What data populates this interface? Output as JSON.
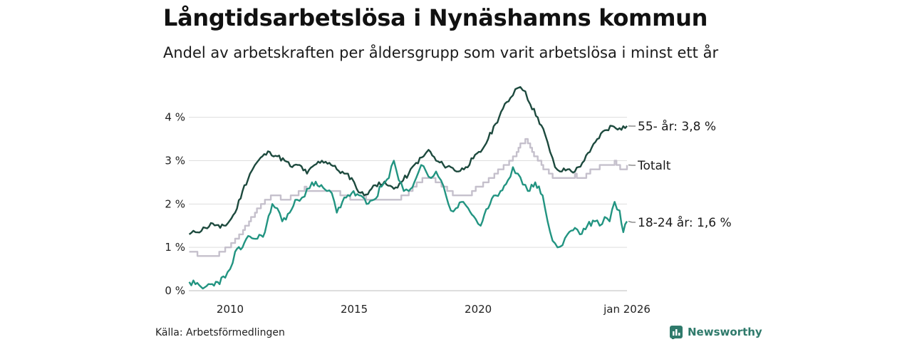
{
  "title": "Långtidsarbetslösa i Nynäshamns kommun",
  "subtitle": "Andel av arbetskraften per åldersgrupp som varit arbetslösa i minst ett år",
  "source": "Källa: Arbetsförmedlingen",
  "brand": {
    "name": "Newsworthy",
    "icon": "newsworthy-logo-icon",
    "color": "#2f7a6b"
  },
  "chart_data": {
    "type": "line",
    "title": "Långtidsarbetslösa i Nynäshamns kommun",
    "subtitle": "Andel av arbetskraften per åldersgrupp som varit arbetslösa i minst ett år",
    "xlabel": "",
    "ylabel": "",
    "x_start": "2008-05",
    "x_end": "2026-01",
    "ylim": [
      0,
      4.8
    ],
    "y_ticks": [
      0,
      1,
      2,
      3,
      4
    ],
    "y_tick_labels": [
      "0 %",
      "1 %",
      "2 %",
      "3 %",
      "4 %"
    ],
    "x_ticks": [
      2010,
      2015,
      2020,
      2026
    ],
    "x_tick_labels": [
      "2010",
      "2015",
      "2020",
      "jan 2026"
    ],
    "grid": true,
    "series": [
      {
        "name": "Totalt",
        "label": "Totalt",
        "color": "#c5c0cc",
        "points": [
          [
            2008.35,
            0.9
          ],
          [
            2008.6,
            0.85
          ],
          [
            2009.0,
            0.75
          ],
          [
            2009.4,
            0.8
          ],
          [
            2009.8,
            0.95
          ],
          [
            2010.2,
            1.15
          ],
          [
            2010.6,
            1.45
          ],
          [
            2011.0,
            1.8
          ],
          [
            2011.4,
            2.1
          ],
          [
            2011.8,
            2.2
          ],
          [
            2012.2,
            2.1
          ],
          [
            2012.6,
            2.2
          ],
          [
            2013.0,
            2.35
          ],
          [
            2013.4,
            2.3
          ],
          [
            2013.8,
            2.25
          ],
          [
            2014.2,
            2.3
          ],
          [
            2014.6,
            2.2
          ],
          [
            2015.0,
            2.1
          ],
          [
            2015.4,
            2.15
          ],
          [
            2015.8,
            2.05
          ],
          [
            2016.2,
            2.1
          ],
          [
            2016.6,
            2.05
          ],
          [
            2016.9,
            2.15
          ],
          [
            2017.2,
            2.25
          ],
          [
            2017.6,
            2.5
          ],
          [
            2017.9,
            2.6
          ],
          [
            2018.2,
            2.55
          ],
          [
            2018.6,
            2.4
          ],
          [
            2018.9,
            2.25
          ],
          [
            2019.2,
            2.15
          ],
          [
            2019.6,
            2.2
          ],
          [
            2019.9,
            2.35
          ],
          [
            2020.2,
            2.45
          ],
          [
            2020.5,
            2.6
          ],
          [
            2020.8,
            2.75
          ],
          [
            2021.1,
            2.9
          ],
          [
            2021.4,
            3.05
          ],
          [
            2021.7,
            3.35
          ],
          [
            2021.9,
            3.45
          ],
          [
            2022.1,
            3.25
          ],
          [
            2022.4,
            3.0
          ],
          [
            2022.7,
            2.8
          ],
          [
            2023.0,
            2.6
          ],
          [
            2023.3,
            2.55
          ],
          [
            2023.6,
            2.6
          ],
          [
            2023.9,
            2.65
          ],
          [
            2024.2,
            2.6
          ],
          [
            2024.6,
            2.8
          ],
          [
            2024.9,
            2.85
          ],
          [
            2025.2,
            2.9
          ],
          [
            2025.5,
            2.95
          ],
          [
            2025.8,
            2.8
          ],
          [
            2026.0,
            2.9
          ]
        ]
      },
      {
        "name": "55- år",
        "label": "55- år: 3,8 %",
        "color": "#1d4a3e",
        "points": [
          [
            2008.35,
            1.3
          ],
          [
            2008.6,
            1.35
          ],
          [
            2009.0,
            1.45
          ],
          [
            2009.3,
            1.55
          ],
          [
            2009.6,
            1.45
          ],
          [
            2009.9,
            1.55
          ],
          [
            2010.2,
            1.8
          ],
          [
            2010.5,
            2.3
          ],
          [
            2010.8,
            2.7
          ],
          [
            2011.0,
            2.9
          ],
          [
            2011.3,
            3.1
          ],
          [
            2011.6,
            3.2
          ],
          [
            2011.9,
            3.1
          ],
          [
            2012.2,
            3.0
          ],
          [
            2012.5,
            2.85
          ],
          [
            2012.8,
            2.9
          ],
          [
            2013.1,
            2.7
          ],
          [
            2013.4,
            2.9
          ],
          [
            2013.7,
            3.0
          ],
          [
            2014.0,
            2.95
          ],
          [
            2014.3,
            2.8
          ],
          [
            2014.6,
            2.7
          ],
          [
            2014.9,
            2.6
          ],
          [
            2015.1,
            2.35
          ],
          [
            2015.4,
            2.2
          ],
          [
            2015.7,
            2.35
          ],
          [
            2016.0,
            2.5
          ],
          [
            2016.3,
            2.45
          ],
          [
            2016.6,
            2.35
          ],
          [
            2016.9,
            2.5
          ],
          [
            2017.2,
            2.7
          ],
          [
            2017.5,
            2.95
          ],
          [
            2017.8,
            3.1
          ],
          [
            2018.0,
            3.25
          ],
          [
            2018.3,
            3.0
          ],
          [
            2018.6,
            2.9
          ],
          [
            2018.9,
            2.85
          ],
          [
            2019.2,
            2.75
          ],
          [
            2019.5,
            2.85
          ],
          [
            2019.8,
            3.05
          ],
          [
            2020.1,
            3.2
          ],
          [
            2020.4,
            3.5
          ],
          [
            2020.7,
            3.85
          ],
          [
            2021.0,
            4.2
          ],
          [
            2021.3,
            4.45
          ],
          [
            2021.5,
            4.65
          ],
          [
            2021.7,
            4.7
          ],
          [
            2021.9,
            4.6
          ],
          [
            2022.1,
            4.3
          ],
          [
            2022.4,
            4.0
          ],
          [
            2022.7,
            3.6
          ],
          [
            2022.9,
            3.2
          ],
          [
            2023.1,
            2.85
          ],
          [
            2023.3,
            2.75
          ],
          [
            2023.6,
            2.8
          ],
          [
            2023.9,
            2.75
          ],
          [
            2024.2,
            2.95
          ],
          [
            2024.5,
            3.2
          ],
          [
            2024.8,
            3.5
          ],
          [
            2025.1,
            3.7
          ],
          [
            2025.4,
            3.8
          ],
          [
            2025.7,
            3.75
          ],
          [
            2026.0,
            3.8
          ]
        ]
      },
      {
        "name": "18-24 år",
        "label": "18-24 år: 1,6 %",
        "color": "#229481",
        "points": [
          [
            2008.35,
            0.2
          ],
          [
            2008.6,
            0.15
          ],
          [
            2008.9,
            0.05
          ],
          [
            2009.2,
            0.15
          ],
          [
            2009.5,
            0.2
          ],
          [
            2009.8,
            0.3
          ],
          [
            2010.0,
            0.5
          ],
          [
            2010.2,
            0.9
          ],
          [
            2010.5,
            1.0
          ],
          [
            2010.8,
            1.25
          ],
          [
            2011.1,
            1.2
          ],
          [
            2011.4,
            1.35
          ],
          [
            2011.7,
            2.0
          ],
          [
            2011.9,
            1.9
          ],
          [
            2012.1,
            1.6
          ],
          [
            2012.4,
            1.8
          ],
          [
            2012.7,
            2.1
          ],
          [
            2012.9,
            2.15
          ],
          [
            2013.1,
            2.35
          ],
          [
            2013.3,
            2.5
          ],
          [
            2013.6,
            2.4
          ],
          [
            2013.9,
            2.3
          ],
          [
            2014.1,
            2.25
          ],
          [
            2014.3,
            1.8
          ],
          [
            2014.6,
            2.15
          ],
          [
            2014.9,
            2.25
          ],
          [
            2015.2,
            2.2
          ],
          [
            2015.5,
            2.0
          ],
          [
            2015.8,
            2.1
          ],
          [
            2016.1,
            2.4
          ],
          [
            2016.4,
            2.6
          ],
          [
            2016.6,
            3.0
          ],
          [
            2016.8,
            2.55
          ],
          [
            2017.0,
            2.3
          ],
          [
            2017.2,
            2.3
          ],
          [
            2017.5,
            2.6
          ],
          [
            2017.7,
            2.9
          ],
          [
            2017.9,
            2.75
          ],
          [
            2018.1,
            2.6
          ],
          [
            2018.3,
            2.75
          ],
          [
            2018.5,
            2.55
          ],
          [
            2018.7,
            2.2
          ],
          [
            2018.9,
            1.85
          ],
          [
            2019.1,
            1.9
          ],
          [
            2019.4,
            2.05
          ],
          [
            2019.6,
            1.9
          ],
          [
            2019.9,
            1.65
          ],
          [
            2020.1,
            1.5
          ],
          [
            2020.4,
            1.9
          ],
          [
            2020.7,
            2.2
          ],
          [
            2020.9,
            2.3
          ],
          [
            2021.2,
            2.55
          ],
          [
            2021.4,
            2.85
          ],
          [
            2021.6,
            2.7
          ],
          [
            2021.8,
            2.45
          ],
          [
            2022.0,
            2.3
          ],
          [
            2022.3,
            2.5
          ],
          [
            2022.6,
            2.2
          ],
          [
            2022.8,
            1.6
          ],
          [
            2023.0,
            1.15
          ],
          [
            2023.2,
            1.0
          ],
          [
            2023.4,
            1.05
          ],
          [
            2023.6,
            1.3
          ],
          [
            2023.9,
            1.45
          ],
          [
            2024.1,
            1.3
          ],
          [
            2024.4,
            1.5
          ],
          [
            2024.7,
            1.6
          ],
          [
            2024.9,
            1.5
          ],
          [
            2025.1,
            1.7
          ],
          [
            2025.3,
            1.6
          ],
          [
            2025.5,
            2.05
          ],
          [
            2025.7,
            1.85
          ],
          [
            2025.85,
            1.35
          ],
          [
            2026.0,
            1.6
          ]
        ]
      }
    ]
  }
}
